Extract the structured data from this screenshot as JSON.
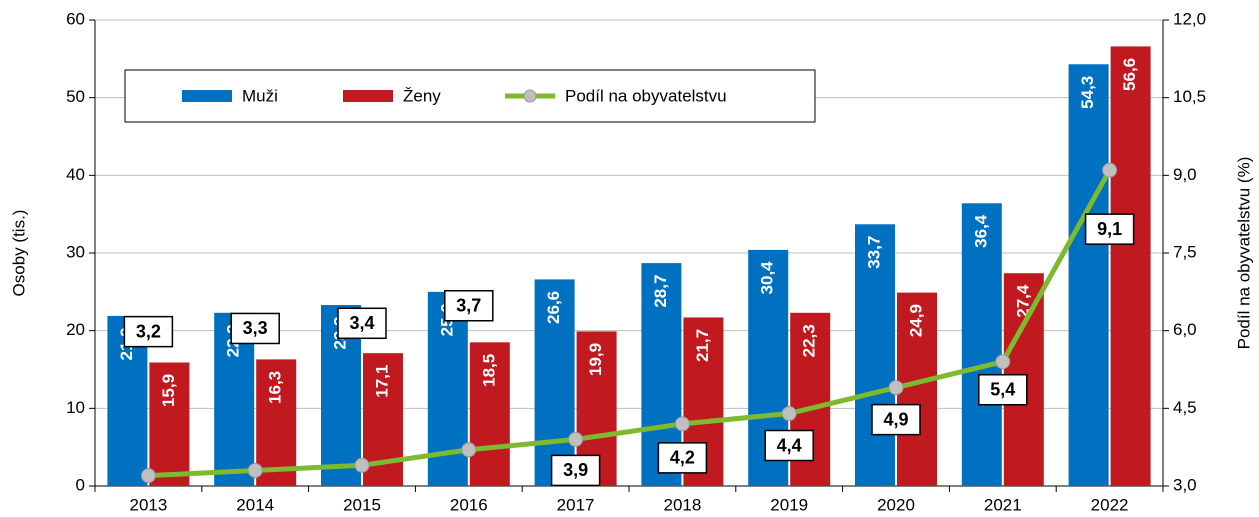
{
  "chart_data": {
    "type": "bar",
    "categories": [
      "2013",
      "2014",
      "2015",
      "2016",
      "2017",
      "2018",
      "2019",
      "2020",
      "2021",
      "2022"
    ],
    "series": [
      {
        "name": "Muži",
        "color": "#0070c0",
        "values": [
          21.9,
          22.3,
          23.3,
          25.0,
          26.6,
          28.7,
          30.4,
          33.7,
          36.4,
          54.3
        ],
        "value_labels": [
          "21,9",
          "22,3",
          "23,3",
          "25,0",
          "26,6",
          "28,7",
          "30,4",
          "33,7",
          "36,4",
          "54,3"
        ]
      },
      {
        "name": "Ženy",
        "color": "#c0191f",
        "values": [
          15.9,
          16.3,
          17.1,
          18.5,
          19.9,
          21.7,
          22.3,
          24.9,
          27.4,
          56.6
        ],
        "value_labels": [
          "15,9",
          "16,3",
          "17,1",
          "18,5",
          "19,9",
          "21,7",
          "22,3",
          "24,9",
          "27,4",
          "56,6"
        ]
      },
      {
        "name": "Podíl na obyvatelstvu",
        "type": "line",
        "axis": "y2",
        "color": "#7dba2f",
        "marker_color": "#bfbfbf",
        "values": [
          3.2,
          3.3,
          3.4,
          3.7,
          3.9,
          4.2,
          4.4,
          4.9,
          5.4,
          9.1
        ],
        "value_labels": [
          "3,2",
          "3,3",
          "3,4",
          "3,7",
          "3,9",
          "4,2",
          "4,4",
          "4,9",
          "5,4",
          "9,1"
        ]
      }
    ],
    "ylabel": "Osoby (tis.)",
    "y2label": "Podíl na obyvatelstvu (%)",
    "ylim": [
      0,
      60
    ],
    "yticks": [
      0,
      10,
      20,
      30,
      40,
      50,
      60
    ],
    "y2lim": [
      3,
      12
    ],
    "y2ticks": [
      {
        "value": 3,
        "label": "3,0"
      },
      {
        "value": 4.5,
        "label": "4,5"
      },
      {
        "value": 6,
        "label": "6,0"
      },
      {
        "value": 7.5,
        "label": "7,5"
      },
      {
        "value": 9,
        "label": "9,0"
      },
      {
        "value": 10.5,
        "label": "10,5"
      },
      {
        "value": 12,
        "label": "12,0"
      }
    ],
    "grid": true
  }
}
